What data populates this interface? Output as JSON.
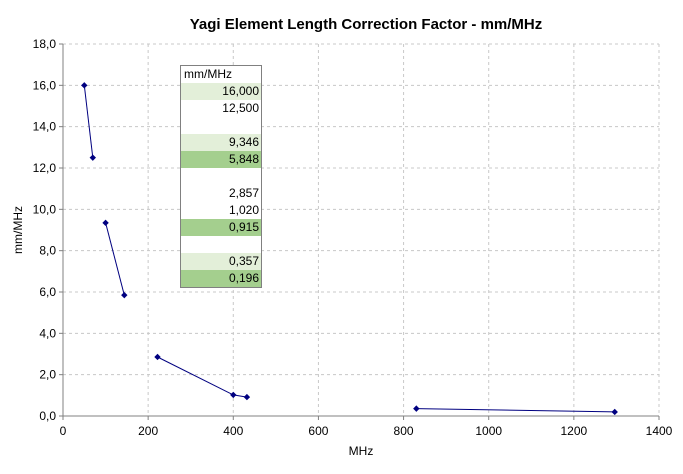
{
  "chart_data": {
    "type": "scatter",
    "title": "Yagi Element Length Correction Factor - mm/MHz",
    "xlabel": "MHz",
    "ylabel": "mm/MHz",
    "xlim": [
      0,
      1400
    ],
    "ylim": [
      0,
      18
    ],
    "x_ticks": [
      "0",
      "200",
      "400",
      "600",
      "800",
      "1000",
      "1200",
      "1400"
    ],
    "y_ticks": [
      "0,0",
      "2,0",
      "4,0",
      "6,0",
      "8,0",
      "10,0",
      "12,0",
      "14,0",
      "16,0",
      "18,0"
    ],
    "grid": true,
    "line_color": "#000080",
    "marker": "diamond",
    "segments": [
      {
        "x": [
          50,
          70
        ],
        "y": [
          16.0,
          12.5
        ]
      },
      {
        "x": [
          100,
          144
        ],
        "y": [
          9.346,
          5.848
        ]
      },
      {
        "x": [
          222,
          400,
          432
        ],
        "y": [
          2.857,
          1.02,
          0.915
        ]
      },
      {
        "x": [
          830,
          1296
        ],
        "y": [
          0.357,
          0.196
        ]
      }
    ]
  },
  "table": {
    "header": "mm/MHz",
    "rows": [
      {
        "value": "16,000",
        "shade": "light"
      },
      {
        "value": "12,500",
        "shade": "white"
      },
      {
        "value": "",
        "shade": "white"
      },
      {
        "value": "9,346",
        "shade": "light"
      },
      {
        "value": "5,848",
        "shade": "dark"
      },
      {
        "value": "",
        "shade": "white"
      },
      {
        "value": "2,857",
        "shade": "white"
      },
      {
        "value": "1,020",
        "shade": "white"
      },
      {
        "value": "0,915",
        "shade": "dark"
      },
      {
        "value": "",
        "shade": "white"
      },
      {
        "value": "0,357",
        "shade": "light"
      },
      {
        "value": "0,196",
        "shade": "dark"
      }
    ]
  }
}
